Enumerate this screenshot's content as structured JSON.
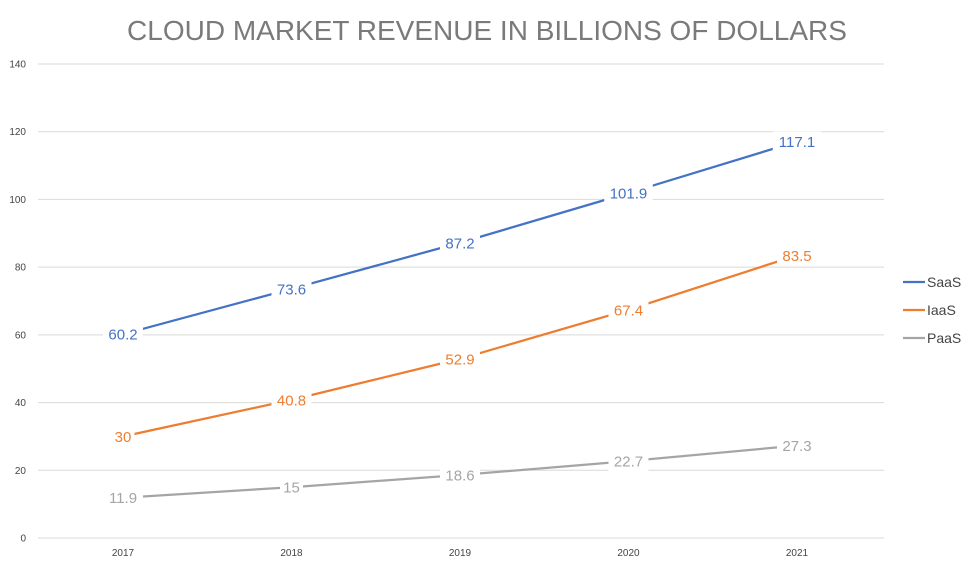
{
  "chart_data": {
    "type": "line",
    "title": "CLOUD MARKET REVENUE IN BILLIONS OF DOLLARS",
    "xlabel": "",
    "ylabel": "",
    "categories": [
      "2017",
      "2018",
      "2019",
      "2020",
      "2021"
    ],
    "ylim": [
      0,
      140
    ],
    "yticks": [
      0,
      20,
      40,
      60,
      80,
      100,
      120,
      140
    ],
    "grid": true,
    "legend_position": "right",
    "series": [
      {
        "name": "SaaS",
        "color": "#4472C4",
        "values": [
          60.2,
          73.6,
          87.2,
          101.9,
          117.1
        ]
      },
      {
        "name": "IaaS",
        "color": "#ED7D31",
        "values": [
          30,
          40.8,
          52.9,
          67.4,
          83.5
        ]
      },
      {
        "name": "PaaS",
        "color": "#A5A5A5",
        "values": [
          11.9,
          15,
          18.6,
          22.7,
          27.3
        ]
      }
    ]
  }
}
